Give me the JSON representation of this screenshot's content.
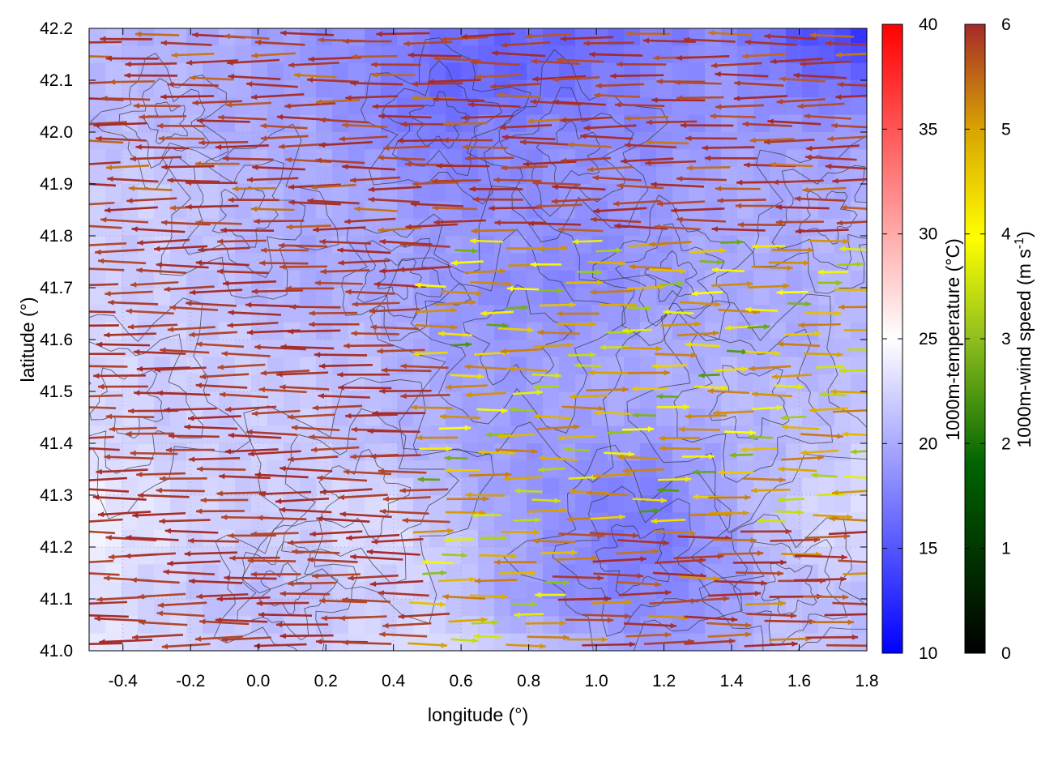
{
  "chart_data": {
    "type": "heatmap",
    "title": "",
    "xlabel": "longitude (°)",
    "ylabel": "latitude (°)",
    "xlim": [
      -0.5,
      1.8
    ],
    "ylim": [
      41.0,
      42.2
    ],
    "x_ticks": [
      "-0.4",
      "-0.2",
      "0.0",
      "0.2",
      "0.4",
      "0.6",
      "0.8",
      "1.0",
      "1.2",
      "1.4",
      "1.6",
      "1.8"
    ],
    "y_ticks": [
      "41.0",
      "41.1",
      "41.2",
      "41.3",
      "41.4",
      "41.5",
      "41.6",
      "41.7",
      "41.8",
      "41.9",
      "42.0",
      "42.1",
      "42.2"
    ],
    "grid": true,
    "temperature_colorbar": {
      "label": "1000m-temperature (°C)",
      "range": [
        10,
        40
      ],
      "ticks": [
        "10",
        "15",
        "20",
        "25",
        "30",
        "35",
        "40"
      ],
      "colors": [
        "#0000ff",
        "#ffffff",
        "#ff0000"
      ]
    },
    "windspeed_colorbar": {
      "label_prefix": "1000m-wind speed (m s",
      "label_sup": "-1",
      "label_suffix": ")",
      "range": [
        0,
        6
      ],
      "ticks": [
        "0",
        "1",
        "2",
        "3",
        "4",
        "5",
        "6"
      ],
      "colors": [
        "#000000",
        "#006400",
        "#8fbf1f",
        "#ffff00",
        "#d9a500",
        "#b4522e",
        "#a52a2a"
      ]
    },
    "temperature_field": [
      [
        24,
        23,
        22,
        22,
        23,
        23,
        22,
        21,
        19,
        20,
        22,
        21
      ],
      [
        23,
        22,
        21,
        21,
        22,
        22,
        19,
        18,
        18,
        19,
        21,
        21
      ],
      [
        24,
        23,
        22,
        22,
        23,
        22,
        20,
        18,
        17,
        19,
        22,
        23
      ],
      [
        24,
        23,
        22,
        22,
        23,
        21,
        19,
        18,
        17,
        20,
        22,
        23
      ],
      [
        23,
        22,
        22,
        22,
        21,
        20,
        19,
        19,
        19,
        20,
        21,
        22
      ],
      [
        23,
        22,
        22,
        22,
        21,
        20,
        19,
        20,
        20,
        21,
        21,
        21
      ],
      [
        23,
        22,
        22,
        21,
        21,
        19,
        19,
        19,
        20,
        20,
        20,
        21
      ],
      [
        22,
        22,
        21,
        20,
        20,
        19,
        18,
        18,
        19,
        20,
        20,
        21
      ],
      [
        22,
        22,
        21,
        20,
        20,
        19,
        19,
        18,
        19,
        20,
        20,
        21
      ],
      [
        22,
        22,
        21,
        20,
        20,
        18,
        18,
        19,
        19,
        20,
        20,
        20
      ],
      [
        21,
        21,
        20,
        20,
        18,
        17,
        18,
        18,
        18,
        19,
        19,
        19
      ],
      [
        21,
        21,
        20,
        19,
        18,
        16,
        16,
        17,
        18,
        19,
        17,
        16
      ],
      [
        21,
        20,
        20,
        19,
        18,
        17,
        16,
        16,
        17,
        18,
        15,
        13
      ]
    ],
    "wind_regimes": [
      {
        "region": "west half",
        "direction": "westward",
        "speed": 6
      },
      {
        "region": "east half, middle latitudes",
        "direction": "mixed westward and eastward",
        "speed_range": [
          2,
          4.5
        ]
      },
      {
        "region": "east half, south (41.0-41.3)",
        "direction": "eastward",
        "speed_range": [
          4,
          6
        ]
      },
      {
        "region": "north (41.8-42.2)",
        "direction": "westward",
        "speed_range": [
          4,
          6
        ]
      }
    ]
  }
}
